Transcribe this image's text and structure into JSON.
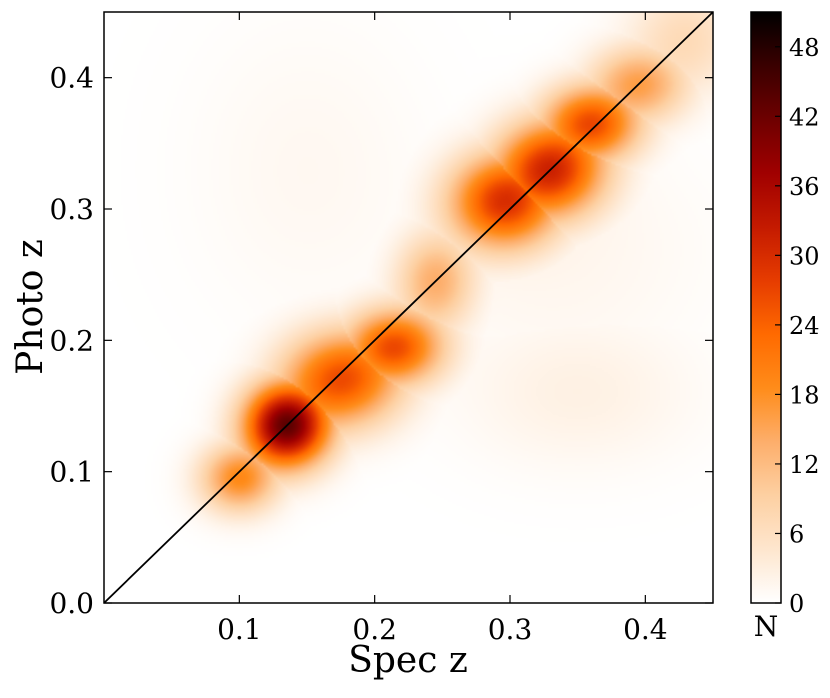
{
  "chart_data": {
    "type": "heatmap",
    "title": "",
    "xlabel": "Spec z",
    "ylabel": "Photo z",
    "xlim": [
      0.0,
      0.45
    ],
    "ylim": [
      0.0,
      0.45
    ],
    "xticks": [
      0.1,
      0.2,
      0.3,
      0.4
    ],
    "xtick_labels": [
      "0.1",
      "0.2",
      "0.3",
      "0.4"
    ],
    "yticks": [
      0.0,
      0.1,
      0.2,
      0.3,
      0.4
    ],
    "ytick_labels": [
      "0.0",
      "0.1",
      "0.2",
      "0.3",
      "0.4"
    ],
    "grid": false,
    "reference_line": {
      "x": [
        0.0,
        0.45
      ],
      "y": [
        0.0,
        0.45
      ]
    },
    "colorbar": {
      "label": "N",
      "min": 0,
      "max": 51,
      "ticks": [
        0,
        6,
        12,
        18,
        24,
        30,
        36,
        42,
        48
      ],
      "tick_labels": [
        "0",
        "6",
        "12",
        "18",
        "24",
        "30",
        "36",
        "42",
        "48"
      ],
      "colormap": [
        "#ffffff",
        "#fee6ce",
        "#fdd0a2",
        "#fdae6b",
        "#ff8c1a",
        "#ff6a00",
        "#e63c00",
        "#c41a00",
        "#a00000",
        "#6e0000",
        "#3a0000",
        "#000000"
      ]
    },
    "density_components": [
      {
        "spec_z": 0.135,
        "photo_z": 0.135,
        "peak_N": 50,
        "sigma_x": 0.022,
        "sigma_y": 0.022
      },
      {
        "spec_z": 0.175,
        "photo_z": 0.17,
        "peak_N": 30,
        "sigma_x": 0.03,
        "sigma_y": 0.025
      },
      {
        "spec_z": 0.215,
        "photo_z": 0.195,
        "peak_N": 30,
        "sigma_x": 0.025,
        "sigma_y": 0.02
      },
      {
        "spec_z": 0.1,
        "photo_z": 0.095,
        "peak_N": 22,
        "sigma_x": 0.02,
        "sigma_y": 0.018
      },
      {
        "spec_z": 0.245,
        "photo_z": 0.245,
        "peak_N": 16,
        "sigma_x": 0.02,
        "sigma_y": 0.025
      },
      {
        "spec_z": 0.295,
        "photo_z": 0.305,
        "peak_N": 33,
        "sigma_x": 0.028,
        "sigma_y": 0.025
      },
      {
        "spec_z": 0.33,
        "photo_z": 0.33,
        "peak_N": 35,
        "sigma_x": 0.028,
        "sigma_y": 0.025
      },
      {
        "spec_z": 0.36,
        "photo_z": 0.365,
        "peak_N": 30,
        "sigma_x": 0.025,
        "sigma_y": 0.02
      },
      {
        "spec_z": 0.395,
        "photo_z": 0.395,
        "peak_N": 18,
        "sigma_x": 0.025,
        "sigma_y": 0.02
      },
      {
        "spec_z": 0.43,
        "photo_z": 0.43,
        "peak_N": 8,
        "sigma_x": 0.03,
        "sigma_y": 0.03
      },
      {
        "spec_z": 0.35,
        "photo_z": 0.16,
        "peak_N": 3,
        "sigma_x": 0.06,
        "sigma_y": 0.04
      },
      {
        "spec_z": 0.33,
        "photo_z": 0.27,
        "peak_N": 2,
        "sigma_x": 0.08,
        "sigma_y": 0.06
      },
      {
        "spec_z": 0.15,
        "photo_z": 0.33,
        "peak_N": 1.5,
        "sigma_x": 0.06,
        "sigma_y": 0.08
      }
    ]
  }
}
